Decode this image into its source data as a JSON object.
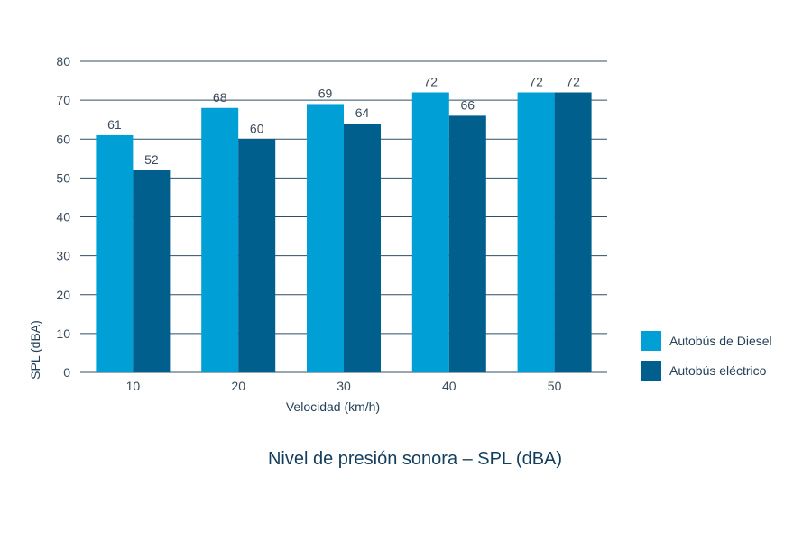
{
  "chart_data": {
    "type": "bar",
    "title": "Nivel de presión sonora – SPL (dBA)",
    "xlabel": "Velocidad (km/h)",
    "ylabel": "SPL (dBA)",
    "categories": [
      "10",
      "20",
      "30",
      "40",
      "50"
    ],
    "series": [
      {
        "name": "Autobús de Diesel",
        "values": [
          61,
          68,
          69,
          72,
          72
        ],
        "color": "#00a0d6"
      },
      {
        "name": "Autobús eléctrico",
        "values": [
          52,
          60,
          64,
          66,
          72
        ],
        "color": "#005f8d"
      }
    ],
    "ylim": [
      0,
      80
    ],
    "yticks": [
      0,
      10,
      20,
      30,
      40,
      50,
      60,
      70,
      80
    ],
    "grid": true,
    "legend_position": "right",
    "colors": {
      "gridline": "#2f4f66",
      "text": "#3b4a5a"
    }
  }
}
